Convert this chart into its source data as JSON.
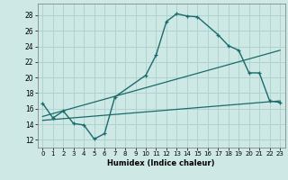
{
  "xlabel": "Humidex (Indice chaleur)",
  "background_color": "#cde8e5",
  "grid_color": "#afd4d0",
  "line_color": "#1a6b6b",
  "xlim": [
    -0.5,
    23.5
  ],
  "ylim": [
    11.0,
    29.5
  ],
  "yticks": [
    12,
    14,
    16,
    18,
    20,
    22,
    24,
    26,
    28
  ],
  "xticks": [
    0,
    1,
    2,
    3,
    4,
    5,
    6,
    7,
    8,
    9,
    10,
    11,
    12,
    13,
    14,
    15,
    16,
    17,
    18,
    19,
    20,
    21,
    22,
    23
  ],
  "line1_x": [
    0,
    1,
    2,
    3,
    4,
    5,
    6,
    7,
    10,
    11,
    12,
    13,
    14,
    15,
    17,
    18,
    19,
    20,
    21,
    22,
    23
  ],
  "line1_y": [
    16.7,
    14.8,
    15.7,
    14.1,
    13.9,
    12.1,
    12.8,
    17.5,
    20.3,
    22.9,
    27.2,
    28.2,
    27.9,
    27.8,
    25.5,
    24.1,
    23.5,
    20.6,
    20.6,
    17.0,
    16.8
  ],
  "line2_x": [
    0,
    23
  ],
  "line2_y": [
    15.0,
    23.5
  ],
  "line3_x": [
    0,
    23
  ],
  "line3_y": [
    14.5,
    17.0
  ]
}
